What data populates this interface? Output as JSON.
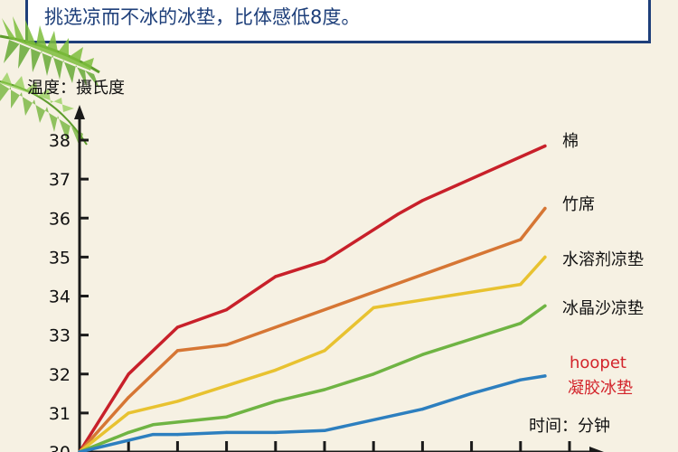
{
  "banner": {
    "text": "挑选凉而不冰的冰垫，比体感低8度。"
  },
  "chart_data": {
    "type": "line",
    "ylabel": "温度：摄氏度",
    "xlabel": "时间：分钟",
    "y_ticks": [
      "30",
      "31",
      "32",
      "33",
      "34",
      "35",
      "36",
      "37",
      "38"
    ],
    "ylim": [
      30,
      38.6
    ],
    "xlim": [
      0,
      10.1
    ],
    "x_tick_positions": [
      1,
      2,
      3,
      4,
      5,
      6,
      7,
      8,
      9,
      10
    ],
    "x": [
      0,
      1,
      1.5,
      2,
      3,
      4,
      5,
      6,
      6.5,
      7,
      8,
      9,
      9.5
    ],
    "series": [
      {
        "name": "棉",
        "color": "#c8202a",
        "x": [
          0,
          1,
          2,
          3,
          4,
          5,
          6.5,
          7,
          9.5
        ],
        "values": [
          30,
          32,
          33.2,
          33.65,
          34.5,
          34.9,
          36.1,
          36.45,
          37.85
        ]
      },
      {
        "name": "竹席",
        "color": "#d67634",
        "x": [
          0,
          1,
          2,
          3,
          9,
          9.5
        ],
        "values": [
          30,
          31.4,
          32.6,
          32.75,
          35.45,
          36.25
        ]
      },
      {
        "name": "水溶剂凉垫",
        "color": "#e8c230",
        "x": [
          0,
          1,
          2,
          3,
          4,
          5,
          6,
          7,
          9,
          9.5
        ],
        "values": [
          30,
          31,
          31.3,
          31.7,
          32.1,
          32.6,
          33.7,
          33.9,
          34.3,
          35
        ]
      },
      {
        "name": "冰晶沙凉垫",
        "color": "#6fb443",
        "x": [
          0,
          1,
          1.5,
          3,
          4,
          5,
          6,
          7,
          9,
          9.5
        ],
        "values": [
          30,
          30.5,
          30.7,
          30.9,
          31.3,
          31.6,
          32,
          32.5,
          33.3,
          33.75
        ]
      },
      {
        "name": "hoopet 凝胶冰垫",
        "label_line1": "hoopet",
        "label_line2": "凝胶冰垫",
        "color": "#2d7fbf",
        "x": [
          0,
          1,
          1.5,
          2,
          3,
          4,
          5,
          7,
          8,
          9,
          9.5
        ],
        "values": [
          30,
          30.3,
          30.45,
          30.45,
          30.5,
          30.5,
          30.55,
          31.1,
          31.5,
          31.85,
          31.95
        ]
      }
    ]
  }
}
